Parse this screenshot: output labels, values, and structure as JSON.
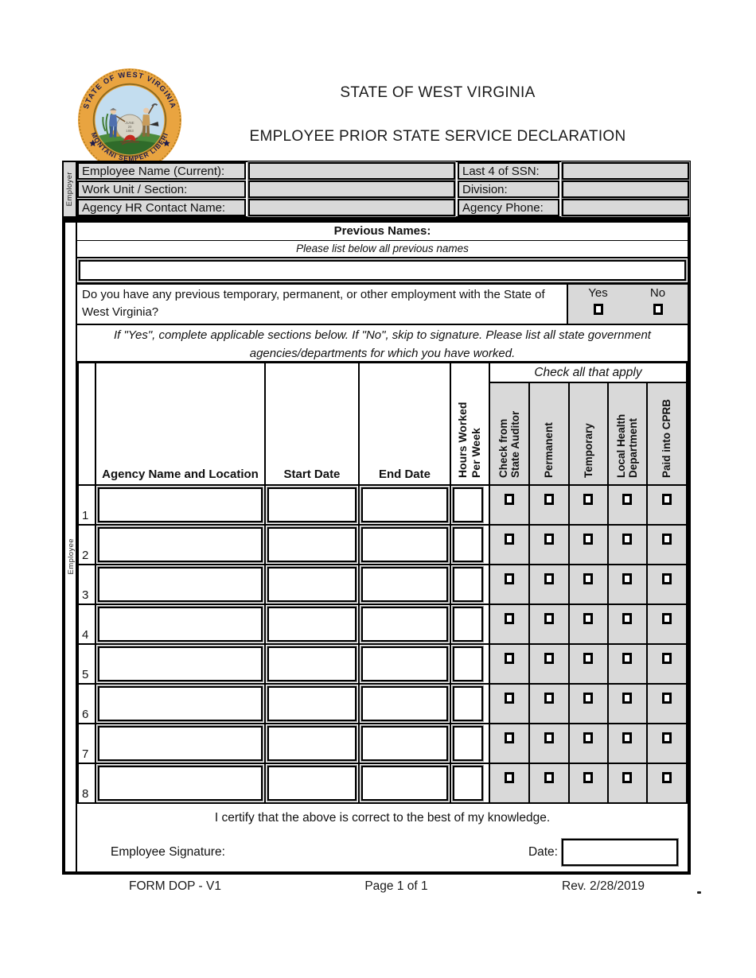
{
  "seal": {
    "top_text": "STATE OF WEST VIRGINIA",
    "bottom_text": "MONTANI SEMPER LIBERI",
    "stone_line1": "JUNE",
    "stone_line2": "20",
    "stone_line3": "1863"
  },
  "header": {
    "title": "STATE OF WEST VIRGINIA",
    "subtitle": "EMPLOYEE PRIOR STATE SERVICE DECLARATION"
  },
  "employer_section": {
    "side_label": "Employer",
    "rows": [
      {
        "left_label": "Employee Name (Current):",
        "left_value": "",
        "right_label": "Last 4 of SSN:",
        "right_value": ""
      },
      {
        "left_label": "Work Unit / Section:",
        "left_value": "",
        "right_label": "Division:",
        "right_value": ""
      },
      {
        "left_label": "Agency HR Contact Name:",
        "left_value": "",
        "right_label": "Agency Phone:",
        "right_value": ""
      }
    ]
  },
  "previous_names": {
    "title": "Previous Names:",
    "instruction": "Please list below all previous names",
    "value": ""
  },
  "question": {
    "text": "Do you have any previous temporary, permanent, or other employment with the State of West Virginia?",
    "yes_label": "Yes",
    "no_label": "No",
    "yes_checked": false,
    "no_checked": false,
    "instruction": "If \"Yes\", complete applicable sections below. If \"No\", skip to signature. Please list all  state government\nagencies/departments for which you have worked."
  },
  "service_table": {
    "side_label": "Employee",
    "check_all_label": "Check all that apply",
    "agency_header": "Agency Name and Location",
    "start_header": "Start Date",
    "end_header": "End Date",
    "hours_header": "Hours Worked\nPer Week",
    "check_columns": [
      "Check from\nState Auditor",
      "Permanent",
      "Temporary",
      "Local Health\nDepartment",
      "Paid into CPRB"
    ],
    "rows": [
      {
        "number": "1",
        "agency_name": "",
        "start_date": "",
        "end_date": "",
        "hours_per_week": "",
        "checks": [
          false,
          false,
          false,
          false,
          false
        ]
      },
      {
        "number": "2",
        "agency_name": "",
        "start_date": "",
        "end_date": "",
        "hours_per_week": "",
        "checks": [
          false,
          false,
          false,
          false,
          false
        ]
      },
      {
        "number": "3",
        "agency_name": "",
        "start_date": "",
        "end_date": "",
        "hours_per_week": "",
        "checks": [
          false,
          false,
          false,
          false,
          false
        ]
      },
      {
        "number": "4",
        "agency_name": "",
        "start_date": "",
        "end_date": "",
        "hours_per_week": "",
        "checks": [
          false,
          false,
          false,
          false,
          false
        ]
      },
      {
        "number": "5",
        "agency_name": "",
        "start_date": "",
        "end_date": "",
        "hours_per_week": "",
        "checks": [
          false,
          false,
          false,
          false,
          false
        ]
      },
      {
        "number": "6",
        "agency_name": "",
        "start_date": "",
        "end_date": "",
        "hours_per_week": "",
        "checks": [
          false,
          false,
          false,
          false,
          false
        ]
      },
      {
        "number": "7",
        "agency_name": "",
        "start_date": "",
        "end_date": "",
        "hours_per_week": "",
        "checks": [
          false,
          false,
          false,
          false,
          false
        ]
      },
      {
        "number": "8",
        "agency_name": "",
        "start_date": "",
        "end_date": "",
        "hours_per_week": "",
        "checks": [
          false,
          false,
          false,
          false,
          false
        ]
      }
    ]
  },
  "certification": {
    "text": "I certify that the above is correct to the best of my knowledge.",
    "signature_label": "Employee Signature:",
    "date_label": "Date:",
    "date_value": ""
  },
  "footer": {
    "form_number": "FORM DOP - V1",
    "page": "Page 1 of 1",
    "revision": "Rev. 2/28/2019"
  }
}
